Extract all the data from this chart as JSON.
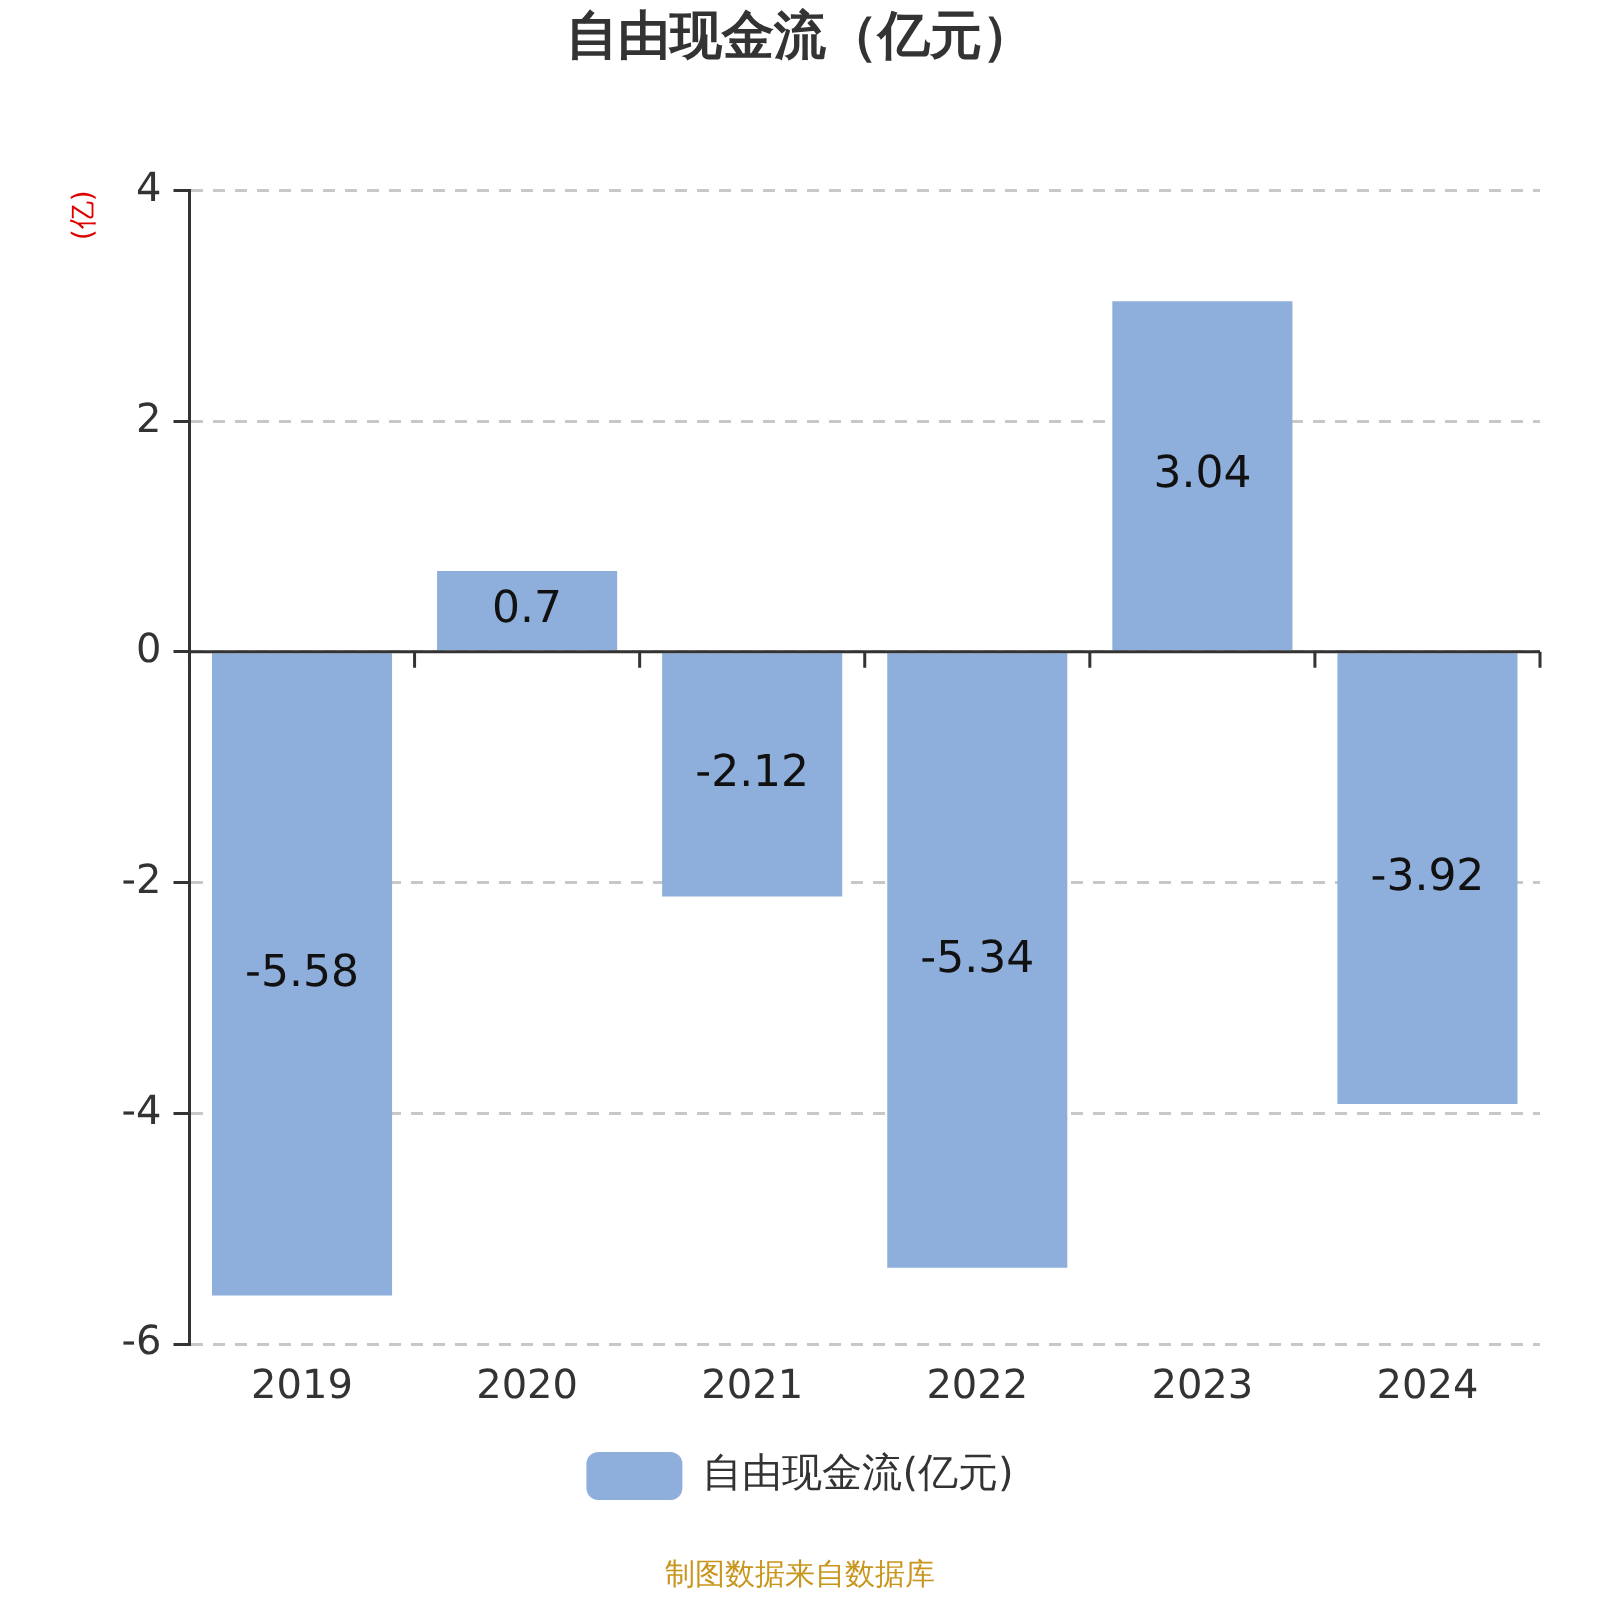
{
  "chart_data": {
    "type": "bar",
    "title": "自由现金流（亿元）",
    "ylabel": "(亿)",
    "categories": [
      "2019",
      "2020",
      "2021",
      "2022",
      "2023",
      "2024"
    ],
    "series": [
      {
        "name": "自由现金流(亿元)",
        "color": "#8eaedb",
        "values": [
          -5.58,
          0.7,
          -2.12,
          -5.34,
          3.04,
          -3.92
        ]
      }
    ],
    "ylim": [
      -6,
      4
    ],
    "yticks": [
      -6,
      -4,
      -2,
      0,
      2,
      4
    ],
    "grid": "y",
    "legend": "bottom",
    "data_labels": true,
    "annotations": [
      "制图数据来自数据库"
    ]
  }
}
